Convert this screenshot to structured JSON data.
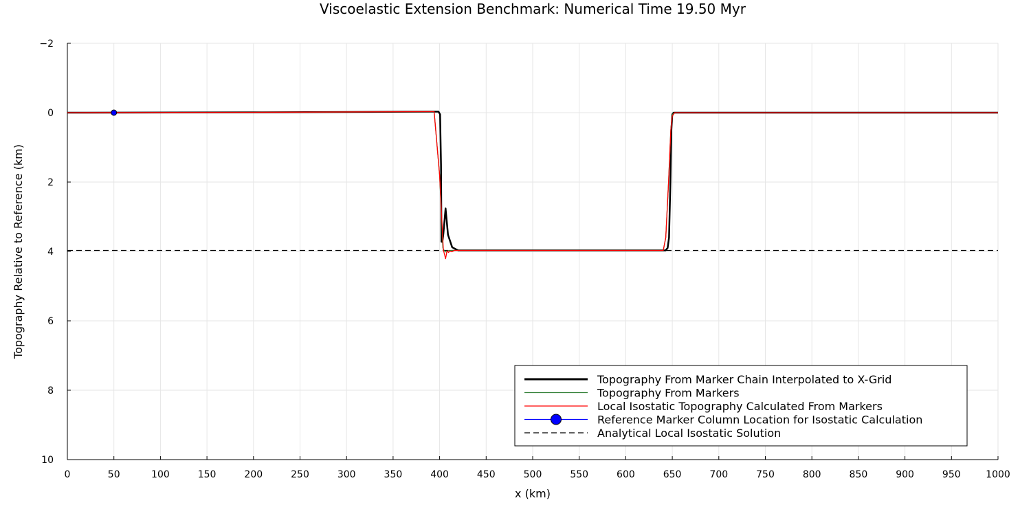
{
  "chart_data": {
    "type": "line",
    "title": "Viscoelastic Extension Benchmark: Numerical Time 19.50 Myr",
    "xlabel": "x (km)",
    "ylabel": "Topography Relative to Reference (km)",
    "xlim": [
      0,
      1000
    ],
    "ylim": [
      -2,
      10
    ],
    "y_inverted": true,
    "grid": true,
    "legend_position": "bottom-right",
    "xticks": [
      0,
      50,
      100,
      150,
      200,
      250,
      300,
      350,
      400,
      450,
      500,
      550,
      600,
      650,
      700,
      750,
      800,
      850,
      900,
      950,
      1000
    ],
    "yticks": [
      -2,
      0,
      2,
      4,
      6,
      8,
      10
    ],
    "ytick_labels": [
      "−2",
      "0",
      "2",
      "4",
      "6",
      "8",
      "10"
    ],
    "series": [
      {
        "name": "Topography From Marker Chain Interpolated to X-Grid",
        "color": "#000000",
        "style": "solid-thick",
        "x": [
          0,
          200,
          390,
          398.8,
          400.5,
          401.5,
          402,
          403,
          404,
          406.4,
          409,
          411,
          413.5,
          417,
          420,
          500,
          600,
          642.8,
          645,
          646.5,
          648,
          649,
          650,
          651.4,
          660,
          800,
          1000
        ],
        "y": [
          0.0,
          -0.01,
          -0.03,
          -0.03,
          0.05,
          1.5,
          3.72,
          3.72,
          3.5,
          2.76,
          3.52,
          3.68,
          3.88,
          3.93,
          3.97,
          3.97,
          3.97,
          3.97,
          3.9,
          3.6,
          2.0,
          0.5,
          0.05,
          0.0,
          0.0,
          0.0,
          0.0
        ]
      },
      {
        "name": "Topography From Markers",
        "color": "#2e7d32",
        "style": "solid",
        "x": [
          0,
          200,
          390,
          394.1,
          400,
          403.5,
          405,
          407,
          410,
          420,
          500,
          600,
          640.3,
          643,
          646,
          648.4,
          650,
          652.6,
          700,
          1000
        ],
        "y": [
          0.0,
          -0.01,
          -0.03,
          -0.03,
          1.8,
          3.9,
          3.98,
          4.02,
          3.97,
          3.97,
          3.97,
          3.97,
          3.97,
          3.6,
          2.0,
          0.5,
          0.05,
          0.0,
          0.0,
          0.0
        ]
      },
      {
        "name": "Local Isostatic Topography Calculated From Markers",
        "color": "#ff0000",
        "style": "solid",
        "x": [
          0,
          200,
          390,
          394.1,
          400,
          404,
          406.4,
          408,
          409.5,
          411,
          413,
          416,
          420,
          500,
          600,
          640.3,
          643,
          646,
          648.4,
          650,
          652.6,
          700,
          1000
        ],
        "y": [
          0.0,
          -0.01,
          -0.03,
          -0.03,
          1.8,
          3.95,
          4.21,
          3.98,
          4.03,
          3.99,
          4.01,
          3.97,
          3.97,
          3.97,
          3.97,
          3.97,
          3.6,
          2.0,
          0.51,
          0.1,
          0.0,
          0.0,
          0.0
        ]
      },
      {
        "name": "Reference Marker Column Location for Isostatic Calculation",
        "color": "#0000ff",
        "style": "marker",
        "x": [
          50
        ],
        "y": [
          0.0
        ]
      },
      {
        "name": "Analytical Local Isostatic Solution",
        "color": "#000000",
        "style": "dashed",
        "x": [
          0,
          1000
        ],
        "y": [
          3.97,
          3.97
        ]
      }
    ]
  }
}
